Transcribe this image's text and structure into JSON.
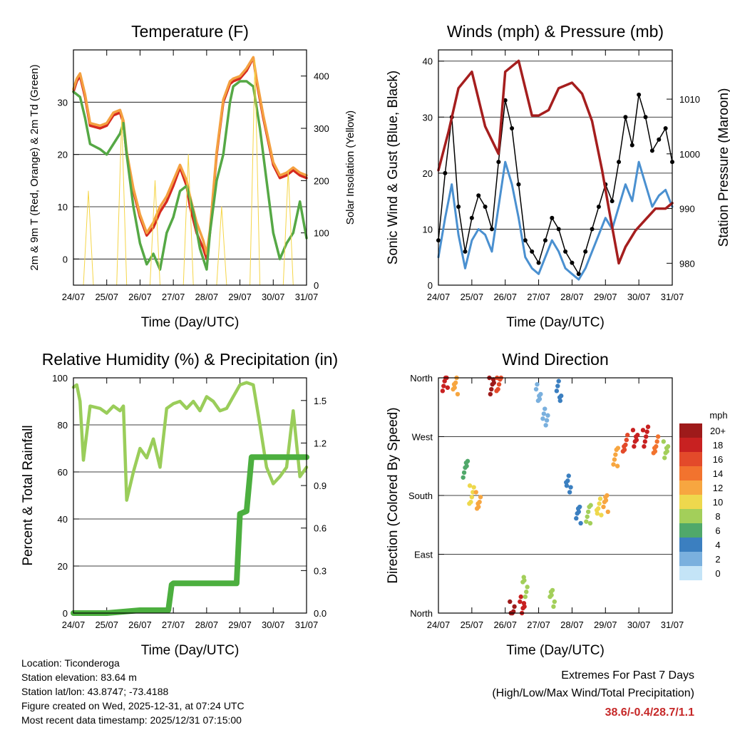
{
  "chart_data": [
    {
      "type": "line",
      "title": "Temperature (F)",
      "xlabel": "Time (Day/UTC)",
      "ylabel": "2m & 9m T (Red, Orange) & 2m Td (Green)",
      "y2label": "Solar Insolation (Yellow)",
      "x_ticks": [
        "24/07",
        "25/07",
        "26/07",
        "27/07",
        "28/07",
        "29/07",
        "30/07",
        "31/07"
      ],
      "y_ticks": [
        "0",
        "10",
        "20",
        "30"
      ],
      "y2_ticks": [
        "0",
        "100",
        "200",
        "300",
        "400"
      ],
      "ylim": [
        -5,
        40
      ],
      "y2lim": [
        0,
        450
      ],
      "grid": true,
      "series": [
        {
          "name": "2m T",
          "color": "#d62a1f",
          "x": [
            0,
            0.1,
            0.2,
            0.35,
            0.5,
            0.8,
            1,
            1.2,
            1.4,
            1.5,
            1.6,
            1.8,
            2,
            2.2,
            2.4,
            2.6,
            2.8,
            3,
            3.2,
            3.4,
            3.5,
            3.7,
            3.9,
            4,
            4.1,
            4.3,
            4.5,
            4.7,
            4.8,
            5,
            5.2,
            5.4,
            5.5,
            5.7,
            5.9,
            6,
            6.2,
            6.4,
            6.6,
            6.8,
            7
          ],
          "values": [
            32,
            34,
            35,
            31,
            25.5,
            25,
            25.5,
            27.5,
            28,
            26,
            20,
            13,
            8,
            4.5,
            6,
            9,
            11,
            14,
            17.5,
            14,
            10,
            5,
            2,
            0,
            5,
            20,
            30,
            33.5,
            34,
            34.5,
            36,
            38.5,
            34,
            27,
            21,
            18,
            15.5,
            16,
            17,
            16,
            15.5
          ]
        },
        {
          "name": "9m T",
          "color": "#f4a040",
          "x": [
            0,
            0.1,
            0.2,
            0.35,
            0.5,
            0.8,
            1,
            1.2,
            1.4,
            1.5,
            1.6,
            1.8,
            2,
            2.2,
            2.4,
            2.6,
            2.8,
            3,
            3.2,
            3.4,
            3.5,
            3.7,
            3.9,
            4,
            4.1,
            4.3,
            4.5,
            4.7,
            4.8,
            5,
            5.2,
            5.4,
            5.5,
            5.7,
            5.9,
            6,
            6.2,
            6.4,
            6.6,
            6.8,
            7
          ],
          "values": [
            32.5,
            34.5,
            35.5,
            31.5,
            26,
            25.5,
            26,
            28,
            28.5,
            26.5,
            20.5,
            13.5,
            8.5,
            5,
            7,
            10,
            12,
            15,
            18,
            15,
            12,
            7,
            3.5,
            1,
            5.5,
            20.5,
            30.5,
            34,
            34.5,
            35,
            36.5,
            38.6,
            34.5,
            27.5,
            21.5,
            18.5,
            16,
            16.5,
            17.5,
            16.5,
            16
          ]
        },
        {
          "name": "2m Td",
          "color": "#55a845",
          "x": [
            0,
            0.2,
            0.35,
            0.5,
            0.8,
            1,
            1.2,
            1.4,
            1.5,
            1.6,
            1.8,
            2,
            2.2,
            2.4,
            2.6,
            2.8,
            3,
            3.2,
            3.4,
            3.6,
            3.8,
            4,
            4.1,
            4.3,
            4.5,
            4.7,
            4.8,
            5,
            5.2,
            5.4,
            5.6,
            5.8,
            6,
            6.2,
            6.4,
            6.6,
            6.8,
            7
          ],
          "values": [
            32,
            31,
            27,
            22,
            21,
            20,
            22,
            24,
            26,
            20,
            10,
            3,
            -1,
            1,
            -2,
            5,
            8,
            13,
            14,
            9,
            2,
            -2,
            5,
            15,
            20,
            30,
            33,
            34,
            34,
            33,
            25,
            15,
            5,
            0,
            3,
            5,
            11,
            4
          ]
        },
        {
          "name": "Solar Insolation",
          "axis": "y2",
          "color": "#f5d547",
          "x": [
            0,
            0.3,
            0.45,
            0.6,
            1.3,
            1.45,
            1.6,
            2.3,
            2.45,
            2.6,
            3.3,
            3.45,
            3.6,
            4.3,
            4.45,
            4.6,
            5.3,
            5.45,
            5.6,
            6.3,
            6.45,
            6.6,
            7
          ],
          "values": [
            0,
            0,
            180,
            0,
            0,
            320,
            0,
            0,
            200,
            0,
            0,
            250,
            0,
            0,
            150,
            0,
            0,
            430,
            0,
            0,
            220,
            0,
            0
          ]
        }
      ]
    },
    {
      "type": "line",
      "title": "Winds (mph) & Pressure (mb)",
      "xlabel": "Time (Day/UTC)",
      "ylabel": "Sonic Wind & Gust (Blue, Black)",
      "y2label": "Station Pressure (Maroon)",
      "x_ticks": [
        "24/07",
        "25/07",
        "26/07",
        "27/07",
        "28/07",
        "29/07",
        "30/07",
        "31/07"
      ],
      "y_ticks": [
        "0",
        "10",
        "20",
        "30",
        "40"
      ],
      "y2_ticks": [
        "980",
        "990",
        "1000",
        "1010"
      ],
      "ylim": [
        0,
        42
      ],
      "y2lim": [
        976,
        1019
      ],
      "grid": true,
      "series": [
        {
          "name": "Gust",
          "color": "#000000",
          "x": [
            0,
            0.2,
            0.4,
            0.6,
            0.8,
            1,
            1.2,
            1.4,
            1.6,
            1.8,
            2,
            2.2,
            2.4,
            2.6,
            2.8,
            3,
            3.2,
            3.4,
            3.6,
            3.8,
            4,
            4.2,
            4.4,
            4.6,
            4.8,
            5,
            5.2,
            5.4,
            5.6,
            5.8,
            6,
            6.2,
            6.4,
            6.6,
            6.8,
            7
          ],
          "values": [
            8,
            20,
            30,
            14,
            6,
            12,
            16,
            14,
            10,
            22,
            33,
            28,
            18,
            8,
            6,
            4,
            8,
            12,
            10,
            6,
            4,
            2,
            6,
            10,
            14,
            18,
            15,
            22,
            30,
            25,
            34,
            30,
            24,
            26,
            28,
            22
          ]
        },
        {
          "name": "Sonic Wind",
          "color": "#4a90d0",
          "x": [
            0,
            0.2,
            0.4,
            0.6,
            0.8,
            1,
            1.2,
            1.4,
            1.6,
            1.8,
            2,
            2.2,
            2.4,
            2.6,
            2.8,
            3,
            3.2,
            3.4,
            3.6,
            3.8,
            4,
            4.2,
            4.4,
            4.6,
            4.8,
            5,
            5.2,
            5.4,
            5.6,
            5.8,
            6,
            6.2,
            6.4,
            6.6,
            6.8,
            7
          ],
          "values": [
            5,
            12,
            18,
            9,
            3,
            8,
            10,
            9,
            6,
            14,
            22,
            18,
            12,
            5,
            3,
            2,
            5,
            8,
            6,
            3,
            2,
            1,
            3,
            6,
            9,
            12,
            10,
            14,
            18,
            15,
            22,
            18,
            14,
            16,
            17,
            14
          ]
        },
        {
          "name": "Station Pressure",
          "axis": "y2",
          "color": "#a51e1e",
          "x": [
            0,
            0.3,
            0.6,
            1,
            1.4,
            1.8,
            2,
            2.4,
            2.8,
            3,
            3.3,
            3.6,
            4,
            4.3,
            4.6,
            4.9,
            5.1,
            5.4,
            5.6,
            5.9,
            6.2,
            6.5,
            6.8,
            7
          ],
          "values": [
            997,
            1004,
            1012,
            1015,
            1005,
            1000,
            1015,
            1017,
            1007,
            1007,
            1008,
            1012,
            1013,
            1011,
            1006,
            997,
            990,
            980,
            983,
            986,
            988,
            990,
            990,
            991
          ]
        }
      ]
    },
    {
      "type": "line",
      "title": "Relative Humidity (%) & Precipitation (in)",
      "xlabel": "Time (Day/UTC)",
      "ylabel": "Percent & Total Rainfall",
      "x_ticks": [
        "24/07",
        "25/07",
        "26/07",
        "27/07",
        "28/07",
        "29/07",
        "30/07",
        "31/07"
      ],
      "y_ticks": [
        "0",
        "20",
        "40",
        "60",
        "80",
        "100"
      ],
      "y2_ticks": [
        "0.0",
        "0.3",
        "0.6",
        "0.9",
        "1.2",
        "1.5"
      ],
      "ylim": [
        0,
        100
      ],
      "y2lim": [
        0,
        1.66
      ],
      "grid": true,
      "series": [
        {
          "name": "Relative Humidity",
          "color": "#9acd5a",
          "x": [
            0,
            0.1,
            0.2,
            0.3,
            0.5,
            0.8,
            1,
            1.2,
            1.4,
            1.5,
            1.6,
            1.8,
            2,
            2.2,
            2.4,
            2.6,
            2.8,
            3,
            3.2,
            3.4,
            3.6,
            3.8,
            4,
            4.2,
            4.4,
            4.6,
            4.8,
            5,
            5.2,
            5.4,
            5.6,
            5.8,
            6,
            6.2,
            6.4,
            6.6,
            6.8,
            7
          ],
          "values": [
            96,
            97,
            90,
            65,
            88,
            87,
            85,
            88,
            86,
            88,
            48,
            60,
            70,
            66,
            74,
            62,
            87,
            89,
            90,
            87,
            90,
            86,
            92,
            90,
            86,
            87,
            92,
            97,
            98,
            97,
            80,
            62,
            55,
            58,
            62,
            86,
            58,
            62
          ]
        },
        {
          "name": "Total Precipitation",
          "axis": "y2",
          "color": "#4caf3f",
          "x": [
            0,
            1,
            2,
            2.85,
            2.95,
            3,
            4,
            4.9,
            5,
            5.2,
            5.35,
            5.5,
            6,
            7
          ],
          "values": [
            0,
            0,
            0.02,
            0.02,
            0.2,
            0.21,
            0.21,
            0.21,
            0.7,
            0.72,
            1.1,
            1.1,
            1.1,
            1.1
          ]
        }
      ]
    },
    {
      "type": "scatter",
      "title": "Wind Direction",
      "xlabel": "Time (Day/UTC)",
      "ylabel": "Direction (Colored By Speed)",
      "x_ticks": [
        "24/07",
        "25/07",
        "26/07",
        "27/07",
        "28/07",
        "29/07",
        "30/07",
        "31/07"
      ],
      "y_ticks": [
        "North",
        "East",
        "South",
        "West",
        "North"
      ],
      "ylim": [
        0,
        360
      ],
      "grid": true,
      "legend": {
        "title": "mph",
        "labels": [
          "20+",
          "18",
          "16",
          "14",
          "12",
          "10",
          "8",
          "6",
          "4",
          "2",
          "0"
        ],
        "colors": [
          "#9e1a1a",
          "#c82121",
          "#e34a2a",
          "#f2732e",
          "#f7a640",
          "#eed84d",
          "#a3cf5a",
          "#50a86a",
          "#3b7fc0",
          "#7ab0de",
          "#c4e4f7"
        ]
      },
      "clusters": [
        {
          "x": 0.2,
          "dir": 355,
          "speed": 18
        },
        {
          "x": 0.5,
          "dir": 350,
          "speed": 12
        },
        {
          "x": 0.8,
          "dir": 220,
          "speed": 6
        },
        {
          "x": 1,
          "dir": 180,
          "speed": 10
        },
        {
          "x": 1.2,
          "dir": 170,
          "speed": 12
        },
        {
          "x": 1.6,
          "dir": 350,
          "speed": 20
        },
        {
          "x": 1.8,
          "dir": 355,
          "speed": 16
        },
        {
          "x": 2.2,
          "dir": 5,
          "speed": 20
        },
        {
          "x": 2.5,
          "dir": 10,
          "speed": 18
        },
        {
          "x": 2.6,
          "dir": 40,
          "speed": 8
        },
        {
          "x": 3,
          "dir": 340,
          "speed": 2
        },
        {
          "x": 3.2,
          "dir": 300,
          "speed": 2
        },
        {
          "x": 3.4,
          "dir": 20,
          "speed": 8
        },
        {
          "x": 3.6,
          "dir": 340,
          "speed": 4
        },
        {
          "x": 3.9,
          "dir": 200,
          "speed": 4
        },
        {
          "x": 4.2,
          "dir": 150,
          "speed": 4
        },
        {
          "x": 4.5,
          "dir": 150,
          "speed": 8
        },
        {
          "x": 4.8,
          "dir": 160,
          "speed": 10
        },
        {
          "x": 5,
          "dir": 170,
          "speed": 12
        },
        {
          "x": 5.3,
          "dir": 240,
          "speed": 12
        },
        {
          "x": 5.6,
          "dir": 260,
          "speed": 16
        },
        {
          "x": 5.9,
          "dir": 265,
          "speed": 18
        },
        {
          "x": 6.2,
          "dir": 270,
          "speed": 18
        },
        {
          "x": 6.5,
          "dir": 260,
          "speed": 14
        },
        {
          "x": 6.8,
          "dir": 250,
          "speed": 8
        }
      ]
    }
  ],
  "station": {
    "location": "Location: Ticonderoga",
    "elevation": "Station elevation: 83.64 m",
    "latlon": "Station lat/lon: 43.8747; -73.4188",
    "created": "Figure created on Wed, 2025-12-31, at 07:24 UTC",
    "latest": "Most recent data timestamp: 2025/12/31 07:15:00"
  },
  "extremes": {
    "heading": "Extremes For Past 7 Days",
    "subheading": "(High/Low/Max Wind/Total Precipitation)",
    "values": "38.6/-0.4/28.7/1.1",
    "values_color": "#c62828"
  }
}
